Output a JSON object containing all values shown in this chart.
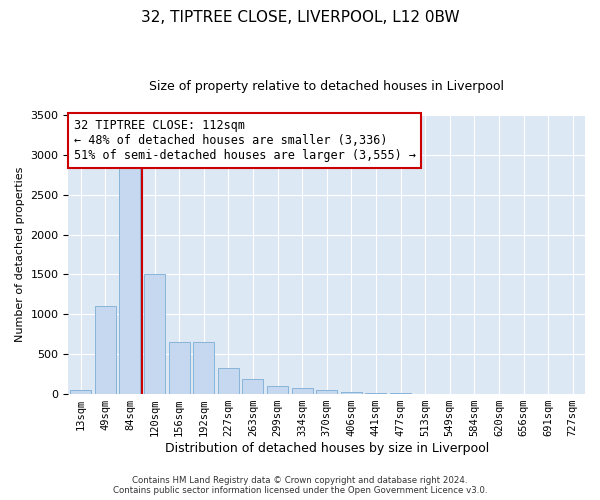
{
  "title": "32, TIPTREE CLOSE, LIVERPOOL, L12 0BW",
  "subtitle": "Size of property relative to detached houses in Liverpool",
  "xlabel": "Distribution of detached houses by size in Liverpool",
  "ylabel": "Number of detached properties",
  "categories": [
    "13sqm",
    "49sqm",
    "84sqm",
    "120sqm",
    "156sqm",
    "192sqm",
    "227sqm",
    "263sqm",
    "299sqm",
    "334sqm",
    "370sqm",
    "406sqm",
    "441sqm",
    "477sqm",
    "513sqm",
    "549sqm",
    "584sqm",
    "620sqm",
    "656sqm",
    "691sqm",
    "727sqm"
  ],
  "values": [
    50,
    1110,
    2950,
    1510,
    650,
    650,
    325,
    195,
    100,
    75,
    55,
    20,
    15,
    8,
    5,
    3,
    2,
    1,
    1,
    0,
    0
  ],
  "bar_color": "#c5d8f0",
  "bar_edge_color": "#7aadd4",
  "vline_color": "#cc0000",
  "vline_x_index": 2.5,
  "annotation_line1": "32 TIPTREE CLOSE: 112sqm",
  "annotation_line2": "← 48% of detached houses are smaller (3,336)",
  "annotation_line3": "51% of semi-detached houses are larger (3,555) →",
  "annotation_box_color": "#ffffff",
  "annotation_box_edge_color": "#cc0000",
  "ylim": [
    0,
    3500
  ],
  "footer_line1": "Contains HM Land Registry data © Crown copyright and database right 2024.",
  "footer_line2": "Contains public sector information licensed under the Open Government Licence v3.0.",
  "bg_color": "#ffffff",
  "plot_bg_color": "#dde8f5",
  "title_fontsize": 11,
  "subtitle_fontsize": 9,
  "axis_label_fontsize": 8,
  "tick_fontsize": 7.5
}
